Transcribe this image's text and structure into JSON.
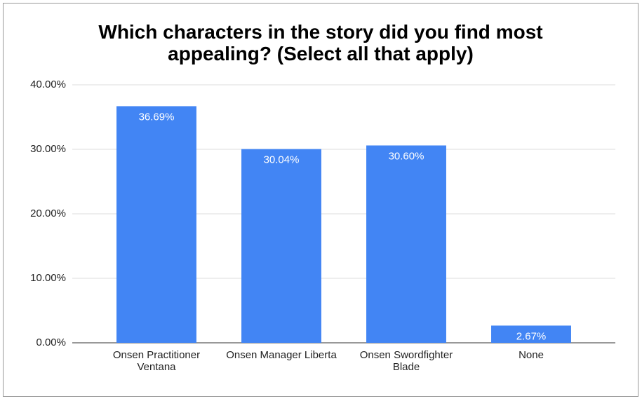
{
  "chart_data": {
    "type": "bar",
    "title": "Which characters in the story did you find most appealing? (Select all that apply)",
    "categories": [
      "Onsen Practitioner Ventana",
      "Onsen Manager Liberta",
      "Onsen Swordfighter Blade",
      "None"
    ],
    "values": [
      36.69,
      30.04,
      30.6,
      2.67
    ],
    "value_labels": [
      "36.69%",
      "30.04%",
      "30.60%",
      "2.67%"
    ],
    "color": "#4285f4",
    "ylim": [
      0,
      40
    ],
    "yticks": [
      {
        "value": 0,
        "label": "0.00%"
      },
      {
        "value": 10,
        "label": "10.00%"
      },
      {
        "value": 20,
        "label": "20.00%"
      },
      {
        "value": 30,
        "label": "30.00%"
      },
      {
        "value": 40,
        "label": "40.00%"
      }
    ],
    "grid": true
  }
}
